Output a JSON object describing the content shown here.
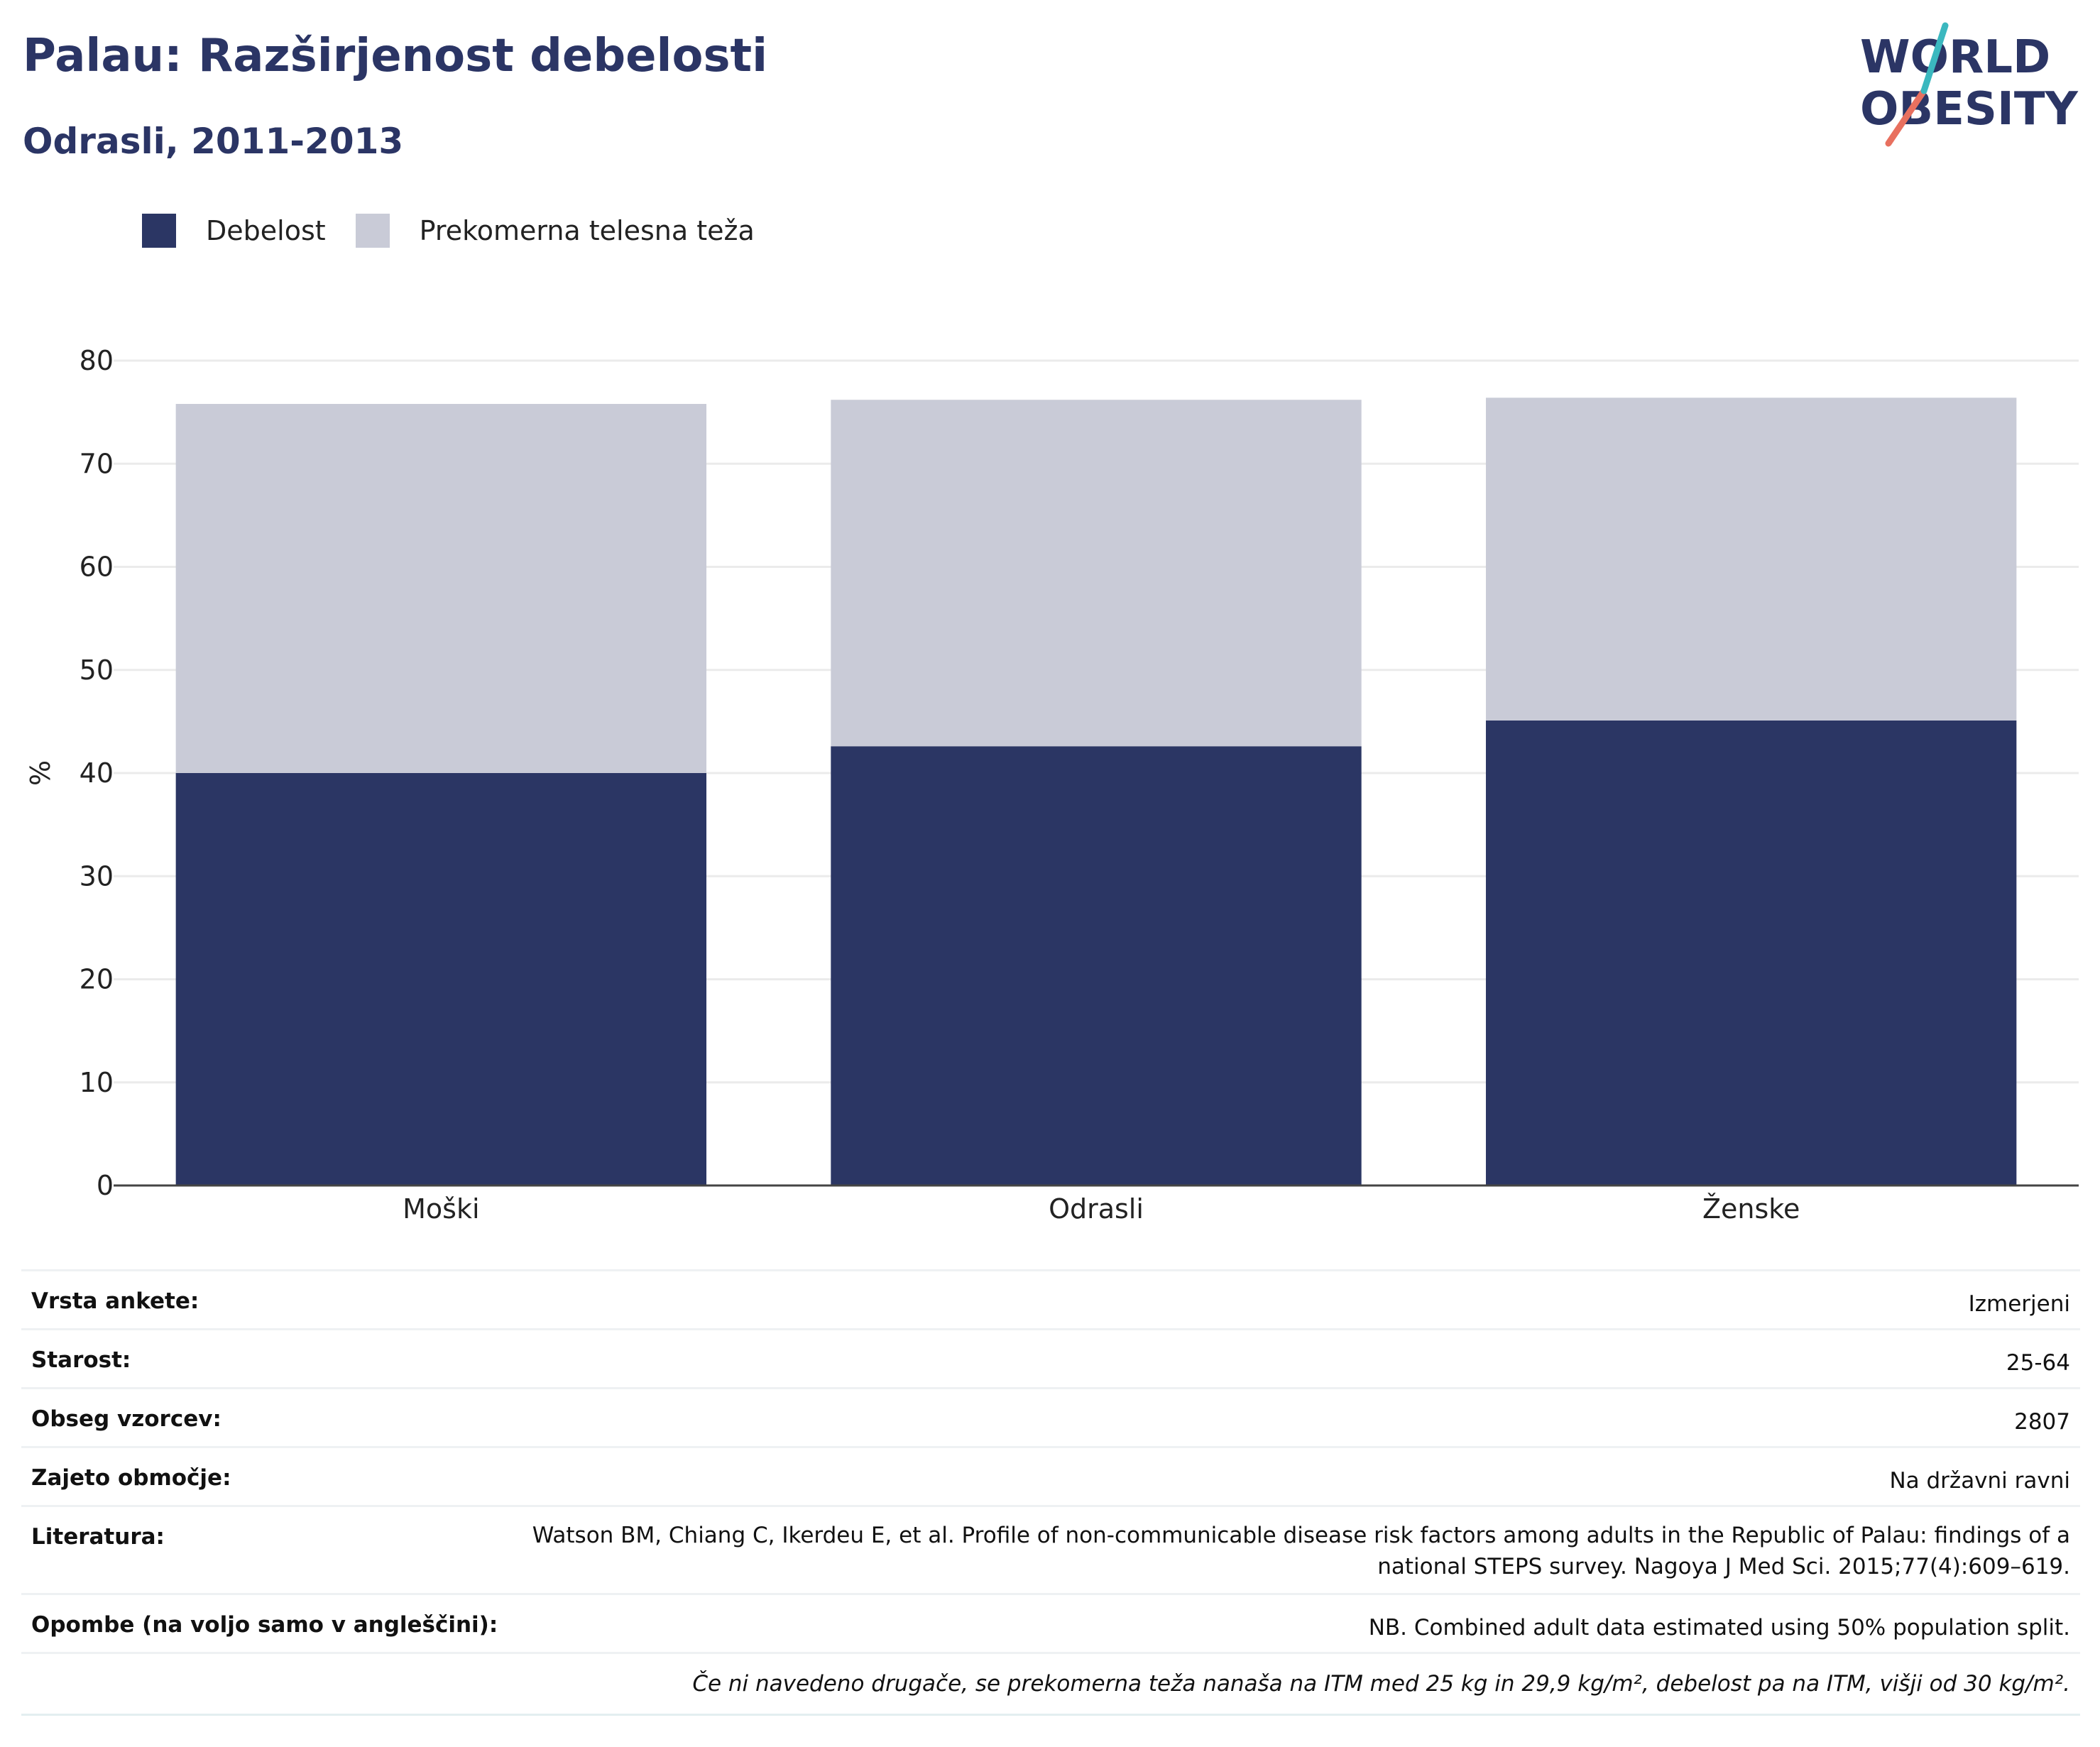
{
  "header": {
    "title": "Palau: Razširjenost debelosti",
    "subtitle": "Odrasli, 2011-2013"
  },
  "logo": {
    "line1": "WORLD",
    "line2": "OBESITY"
  },
  "colors": {
    "obesity": "#2b3664",
    "overweight": "#c9cbd7",
    "title": "#2b3565",
    "logo_teal": "#3bb8bf",
    "logo_coral": "#e8705f"
  },
  "legend": [
    {
      "label": "Debelost",
      "color": "#2b3664"
    },
    {
      "label": "Prekomerna telesna teža",
      "color": "#c9cbd7"
    }
  ],
  "chart_data": {
    "type": "bar",
    "stacked": true,
    "categories": [
      "Moški",
      "Odrasli",
      "Ženske"
    ],
    "series": [
      {
        "name": "Debelost",
        "values": [
          40.0,
          42.6,
          45.1
        ]
      },
      {
        "name": "Prekomerna telesna teža",
        "values": [
          35.8,
          33.6,
          31.3
        ]
      }
    ],
    "ylabel": "%",
    "ylim": [
      0,
      80
    ],
    "yticks": [
      0,
      10,
      20,
      30,
      40,
      50,
      60,
      70,
      80
    ],
    "grid": true,
    "legend_position": "top-left"
  },
  "info": [
    {
      "key": "Vrsta ankete:",
      "value": "Izmerjeni"
    },
    {
      "key": "Starost:",
      "value": "25-64"
    },
    {
      "key": "Obseg vzorcev:",
      "value": "2807"
    },
    {
      "key": "Zajeto območje:",
      "value": "Na državni ravni"
    },
    {
      "key": "Literatura:",
      "value": "Watson BM, Chiang C, Ikerdeu E, et al. Profile of non-communicable disease risk factors among adults in the Republic of Palau: findings of a national STEPS survey. Nagoya J Med Sci. 2015;77(4):609–619."
    },
    {
      "key": "Opombe (na voljo samo v angleščini):",
      "value": "NB. Combined adult data estimated using 50% population split."
    }
  ],
  "footnote": "Če ni navedeno drugače, se prekomerna teža nanaša na ITM med 25 kg in 29,9 kg/m², debelost pa na ITM, višji od 30 kg/m²."
}
